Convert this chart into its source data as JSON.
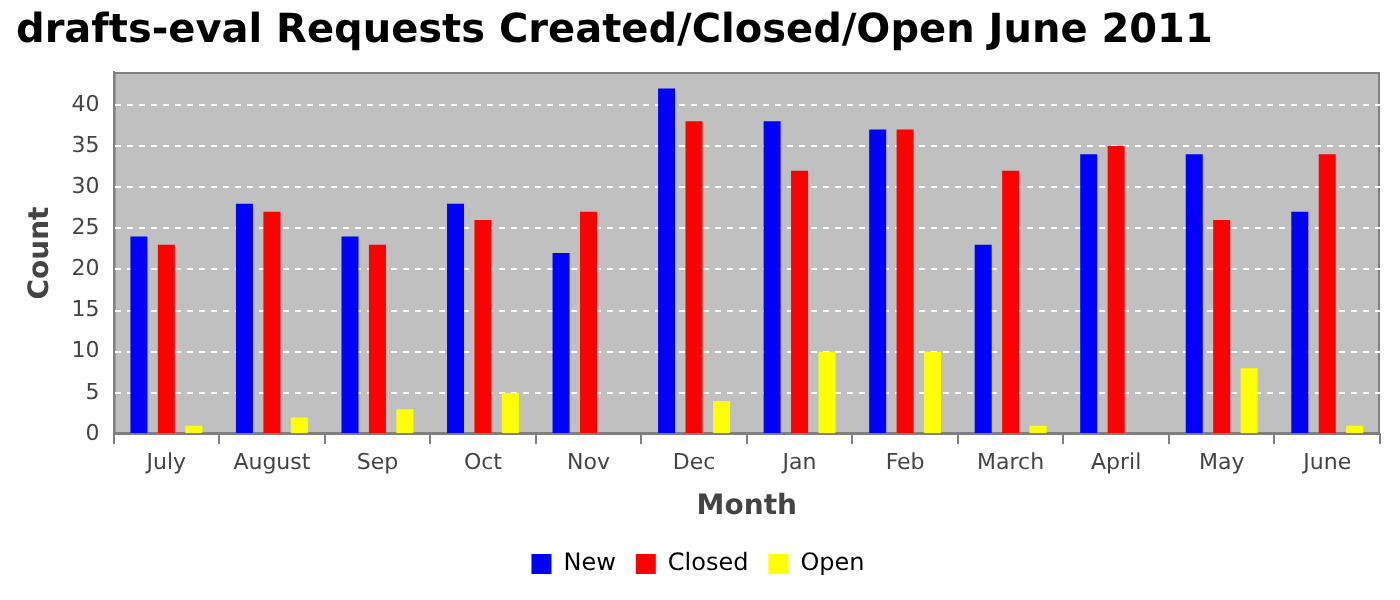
{
  "chart_data": {
    "type": "bar",
    "title": "drafts-eval Requests Created/Closed/Open June 2011",
    "xlabel": "Month",
    "ylabel": "Count",
    "categories": [
      "July",
      "August",
      "Sep",
      "Oct",
      "Nov",
      "Dec",
      "Jan",
      "Feb",
      "March",
      "April",
      "May",
      "June"
    ],
    "series": [
      {
        "name": "New",
        "color": "#0000ff",
        "values": [
          24,
          28,
          24,
          28,
          22,
          42,
          38,
          37,
          23,
          34,
          34,
          27
        ]
      },
      {
        "name": "Closed",
        "color": "#ff0000",
        "values": [
          23,
          27,
          23,
          26,
          27,
          38,
          32,
          37,
          32,
          35,
          26,
          34
        ]
      },
      {
        "name": "Open",
        "color": "#ffff00",
        "values": [
          1,
          2,
          3,
          5,
          0,
          4,
          10,
          10,
          1,
          0,
          8,
          1
        ]
      }
    ],
    "ylim": [
      0,
      44
    ],
    "yticks": [
      0,
      5,
      10,
      15,
      20,
      25,
      30,
      35,
      40
    ],
    "grid": "y",
    "legend": "bottom"
  }
}
